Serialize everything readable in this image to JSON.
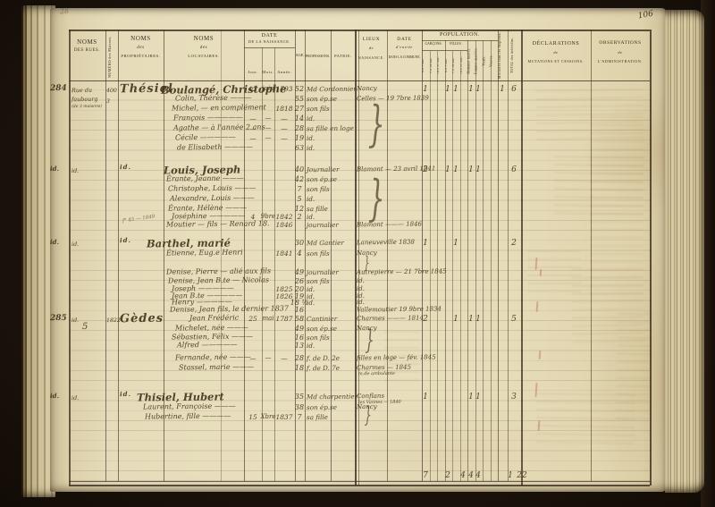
{
  "page": {
    "folio": "106",
    "pencil_note": "28"
  },
  "header": {
    "rues1": "NOMS",
    "rues2": "DES RUES.",
    "numero": "NUMÉRO des Maisons.",
    "prop1": "NOMS",
    "prop2": "des",
    "prop3": "PROPRIÉTAIRES.",
    "loc1": "NOMS",
    "loc2": "des",
    "loc3": "LOCATAIRES.",
    "naissance1": "DATE",
    "naissance2": "DE LA NAISSANCE.",
    "jour": "Jour.",
    "mois": "Mois.",
    "annee": "Année.",
    "age": "AGE.",
    "professions": "PROFESSIONS.",
    "patrie": "PATRIE.",
    "lieux1": "LIEUX",
    "lieux2": "de",
    "lieux3": "NAISSANCE.",
    "entree1": "DATE",
    "entree2": "d'entrée",
    "entree3": "DANS LA COMMUNE.",
    "population": "POPULATION.",
    "garcons": "GARÇONS.",
    "filles": "FILLES.",
    "sub_g": [
      "0 à 7 ans.",
      "7 à 14 ans.",
      "14 à 21 ans."
    ],
    "sub_f": [
      "0 à 7 ans.",
      "7 à 14 ans.",
      "14 à 21 ans."
    ],
    "hommes": "Hommes mariés.",
    "femmes": "Femmes mariées.",
    "veufs": "Veufs.",
    "veuves": "Veuves.",
    "militaires": "Militaires sous les drapeaux.",
    "total": "TOTAL des individus.",
    "decl1": "DÉCLARATIONS",
    "decl2": "de",
    "decl3": "MUTATIONS ET CESSIONS.",
    "obs1": "OBSERVATIONS",
    "obs2": "de",
    "obs3": "L'ADMINISTRATION."
  },
  "blocks": [
    {
      "margin": "284",
      "rue": [
        "Rue du",
        "faubourg",
        "(de 3 maisons)"
      ],
      "numero": [
        "400",
        "3"
      ],
      "proprietaire": "Thésiel",
      "rows": [
        {
          "name": "Boulangé, Christophe",
          "big": true,
          "jour": "12",
          "mois": "juin",
          "annee": "1793",
          "age": "52",
          "prof": "Md Cordonnier"
        },
        {
          "name": "Colin, Thérèse ———",
          "age": "55",
          "prof": "son ép.se"
        },
        {
          "name": "Michel, — en complément",
          "annee": "1818",
          "age": "27",
          "prof": "son fils"
        },
        {
          "name": "François —————",
          "jour": "—",
          "mois": "—",
          "annee": "—",
          "age": "14",
          "prof": "id."
        },
        {
          "name": "Agathe — à l'année 2 ans",
          "jour": "—",
          "mois": "—",
          "annee": "—",
          "age": "28",
          "prof": "sa fille en loge"
        },
        {
          "name": "Cécile —————",
          "jour": "—",
          "mois": "—",
          "annee": "—",
          "age": "19",
          "prof": "id."
        },
        {
          "name": "de Elisabeth ————",
          "age": "63",
          "prof": "id."
        }
      ],
      "lieu": [
        {
          "row": 0,
          "text": "Nancy"
        },
        {
          "row": 1,
          "text": "Celles — 19 7bre 1839"
        }
      ],
      "tallies": [
        {
          "col": "g1",
          "v": "1"
        },
        {
          "col": "f1",
          "v": "1"
        },
        {
          "col": "f2",
          "v": "1"
        },
        {
          "col": "hm",
          "v": "1"
        },
        {
          "col": "fm",
          "v": "1"
        },
        {
          "col": "mil",
          "v": "1"
        },
        {
          "col": "tot",
          "v": "6"
        }
      ]
    },
    {
      "margin": "id.",
      "rue": [
        "id."
      ],
      "numero": [],
      "proprietaire": "id.",
      "note": "f° 45 — 1849",
      "rows": [
        {
          "name": "Louis, Joseph",
          "big": true,
          "age": "40",
          "prof": "Journalier"
        },
        {
          "name": "Érante, Jeanne ———",
          "age": "42",
          "prof": "son ép.se"
        },
        {
          "name": "Christophe, Louis ———",
          "age": "7",
          "prof": "son fils"
        },
        {
          "name": "Alexandre, Louis ———",
          "age": "5",
          "prof": "id."
        },
        {
          "name": "Érante, Hélène ———",
          "age": "12",
          "prof": "sa fille"
        },
        {
          "name": "Joséphine —————",
          "jour": "4",
          "mois": "9bre",
          "annee": "1842",
          "age": "2",
          "prof": "id."
        },
        {
          "name": "Moutier — fils — Renard 18.",
          "annee": "1846",
          "prof": "journalier"
        }
      ],
      "lieu": [
        {
          "row": 0,
          "text": "Blamont — 23 avril 1841"
        },
        {
          "row": 6,
          "text": "Blamont ——— 1846"
        }
      ],
      "tallies": [
        {
          "col": "g1",
          "v": "2"
        },
        {
          "col": "f1",
          "v": "1"
        },
        {
          "col": "f2",
          "v": "1"
        },
        {
          "col": "hm",
          "v": "1"
        },
        {
          "col": "fm",
          "v": "1"
        },
        {
          "col": "tot",
          "v": "6"
        }
      ]
    },
    {
      "margin": "id.",
      "rue": [
        "id."
      ],
      "numero": [],
      "proprietaire": "id.",
      "rows": [
        {
          "name": "Barthel, marié",
          "big": true,
          "age": "30",
          "prof": "Md Gantier"
        },
        {
          "name": "Étienne, Eug.e Henri",
          "annee": "1841",
          "age": "4",
          "prof": "son fils"
        },
        {
          "name": "Denise, Pierre — alié aux fils",
          "age": "49",
          "prof": "journalier"
        },
        {
          "name": "Denise, Jean B.te — Nicolas",
          "age": "26",
          "prof": "son fils"
        },
        {
          "name": "Joseph —————",
          "annee": "1825",
          "age": "20",
          "prof": "id."
        },
        {
          "name": "Jean B.te —————",
          "annee": "1826",
          "age": "19",
          "prof": "id."
        },
        {
          "name": "Henry —————",
          "age": "18 ½",
          "prof": "id."
        },
        {
          "name": "Denise, Jean fils, le dernier 1837",
          "age": "16"
        }
      ],
      "lieu": [
        {
          "row": 0,
          "text": "Laneuveville 1838"
        },
        {
          "row": 1,
          "text": "Nancy"
        },
        {
          "row": 2,
          "text": "Autrepierre — 21 7bre 1845"
        },
        {
          "row": 3,
          "text": "id."
        },
        {
          "row": 4,
          "text": "id."
        },
        {
          "row": 5,
          "text": "id."
        },
        {
          "row": 6,
          "text": "id."
        },
        {
          "row": 7,
          "text": "Vallemoutier 19 9bre 1834"
        }
      ],
      "tallies": [
        {
          "col": "g1",
          "v": "1"
        },
        {
          "col": "f2",
          "v": "1"
        },
        {
          "col": "tot",
          "v": "2"
        }
      ]
    },
    {
      "margin": "285",
      "margin2": "5",
      "rue": [
        "id."
      ],
      "numero": [
        "1822"
      ],
      "proprietaire": "Gèdes",
      "rows": [
        {
          "name": "Jean Frédéric",
          "jour": "25",
          "mois": "mai",
          "annee": "1787",
          "age": "58",
          "prof": "Cantinier"
        },
        {
          "name": "Michelet, née ———",
          "age": "49",
          "prof": "son ép.se"
        },
        {
          "name": "Sébastien, Félix ———",
          "age": "16",
          "prof": "son fils"
        },
        {
          "name": "Alfred —————",
          "age": "13",
          "prof": "id."
        },
        {
          "name": "Fernande, née ———",
          "jour": "—",
          "mois": "—",
          "annee": "—",
          "age": "28",
          "prof": "f. de D. 2e"
        },
        {
          "name": "Stassel, marie ———",
          "age": "18",
          "prof": "f. de D. 7e"
        }
      ],
      "lieu": [
        {
          "row": 0,
          "text": "Charmes ——— 1814"
        },
        {
          "row": 1,
          "text": "Nancy"
        },
        {
          "row": 4,
          "text": "filles en loge — fév. 1845"
        },
        {
          "row": 5,
          "text": "Charmes — 1845",
          "small": "m.de ambulante"
        }
      ],
      "tallies": [
        {
          "col": "g1",
          "v": "2"
        },
        {
          "col": "f2",
          "v": "1"
        },
        {
          "col": "hm",
          "v": "1"
        },
        {
          "col": "fm",
          "v": "1"
        },
        {
          "col": "tot",
          "v": "5"
        }
      ]
    },
    {
      "margin": "id.",
      "rue": [
        "id."
      ],
      "numero": [],
      "proprietaire": "id.",
      "rows": [
        {
          "name": "Thisiel, Hubert",
          "big": true,
          "age": "35",
          "prof": "Md charpentier"
        },
        {
          "name": "Laurent, Françoise ———",
          "age": "38",
          "prof": "son ép.se"
        },
        {
          "name": "Hubertine, fille ————",
          "jour": "15",
          "mois": "Xbre",
          "annee": "1837",
          "age": "7",
          "prof": "sa fille"
        }
      ],
      "lieu": [
        {
          "row": 0,
          "text": "Conflans",
          "small": "les Vannes — 1840"
        },
        {
          "row": 1,
          "text": "Nancy"
        }
      ],
      "tallies": [
        {
          "col": "g1",
          "v": "1"
        },
        {
          "col": "hm",
          "v": "1"
        },
        {
          "col": "fm",
          "v": "1"
        },
        {
          "col": "tot",
          "v": "3"
        }
      ]
    }
  ],
  "totals": [
    {
      "col": "g1",
      "v": "7"
    },
    {
      "col": "f1",
      "v": "2"
    },
    {
      "col": "f3",
      "v": "4"
    },
    {
      "col": "hm",
      "v": "4"
    },
    {
      "col": "fm",
      "v": "4"
    },
    {
      "col": "mil2",
      "v": "1"
    },
    {
      "col": "tot2",
      "v": "22"
    }
  ],
  "colors": {
    "paper": "#e8dfbf",
    "ink": "#3e2d18",
    "print": "#3a2e1c",
    "cover": "#1d150c",
    "red_mark": "#ba5c50"
  }
}
